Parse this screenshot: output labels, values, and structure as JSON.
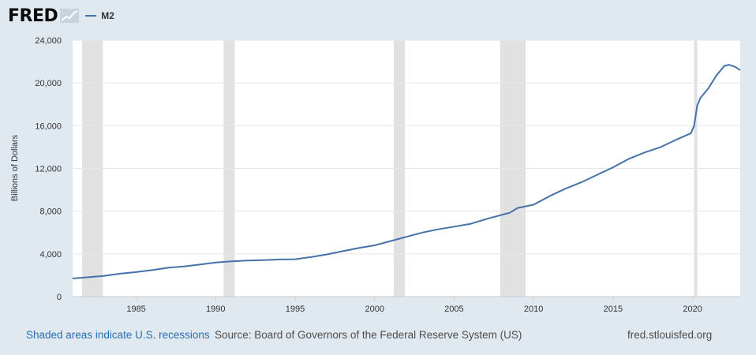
{
  "header": {
    "logo_text": "FRED",
    "series_label": "M2"
  },
  "footer": {
    "recession_note": "Shaded areas indicate U.S. recessions",
    "source": "Source: Board of Governors of the Federal Reserve System (US)",
    "site": "fred.stlouisfed.org"
  },
  "colors": {
    "line": "#4572a7",
    "recession": "#e1e1e1",
    "background": "#e1e9f0",
    "plot": "#ffffff"
  },
  "chart_data": {
    "type": "line",
    "title": "",
    "xlabel": "",
    "ylabel": "Billions of Dollars",
    "xlim": [
      1981.0,
      2023.0
    ],
    "ylim": [
      0,
      24000
    ],
    "y_ticks": [
      0,
      4000,
      8000,
      12000,
      16000,
      20000,
      24000
    ],
    "y_tick_labels": [
      "0",
      "4,000",
      "8,000",
      "12,000",
      "16,000",
      "20,000",
      "24,000"
    ],
    "x_ticks": [
      1985,
      1990,
      1995,
      2000,
      2005,
      2010,
      2015,
      2020
    ],
    "x_tick_labels": [
      "1985",
      "1990",
      "1995",
      "2000",
      "2005",
      "2010",
      "2015",
      "2020"
    ],
    "grid": true,
    "recessions": [
      [
        1981.6,
        1982.9
      ],
      [
        1990.5,
        1991.2
      ],
      [
        2001.2,
        2001.9
      ],
      [
        2007.9,
        2009.5
      ],
      [
        2020.1,
        2020.3
      ]
    ],
    "series": [
      {
        "name": "M2",
        "x": [
          1981.0,
          1982.0,
          1983.0,
          1984.0,
          1985.0,
          1986.0,
          1987.0,
          1988.0,
          1989.0,
          1990.0,
          1991.0,
          1992.0,
          1993.0,
          1994.0,
          1995.0,
          1996.0,
          1997.0,
          1998.0,
          1999.0,
          2000.0,
          2001.0,
          2002.0,
          2003.0,
          2004.0,
          2005.0,
          2006.0,
          2007.0,
          2008.0,
          2008.5,
          2009.0,
          2010.0,
          2011.0,
          2012.0,
          2013.0,
          2014.0,
          2015.0,
          2016.0,
          2017.0,
          2018.0,
          2019.0,
          2019.9,
          2020.1,
          2020.3,
          2020.5,
          2021.0,
          2021.5,
          2022.0,
          2022.3,
          2022.7,
          2023.0
        ],
        "y": [
          1700,
          1820,
          1950,
          2150,
          2300,
          2480,
          2700,
          2830,
          3000,
          3200,
          3300,
          3380,
          3420,
          3480,
          3500,
          3700,
          3950,
          4250,
          4550,
          4800,
          5200,
          5600,
          6000,
          6300,
          6550,
          6800,
          7250,
          7650,
          7850,
          8300,
          8600,
          9400,
          10100,
          10700,
          11400,
          12100,
          12900,
          13500,
          14000,
          14700,
          15300,
          16000,
          17900,
          18600,
          19500,
          20700,
          21600,
          21700,
          21500,
          21200
        ]
      }
    ]
  }
}
